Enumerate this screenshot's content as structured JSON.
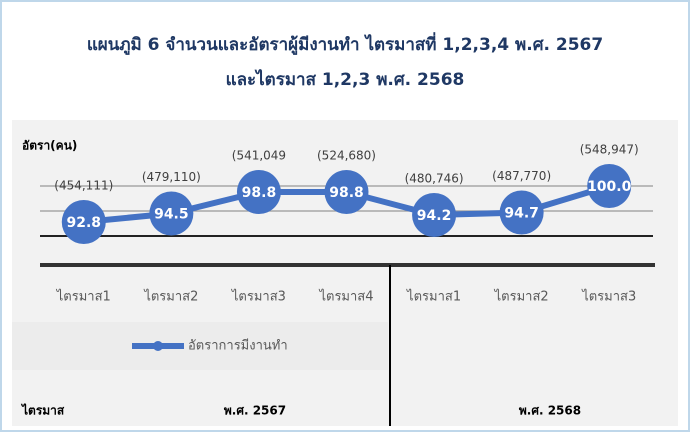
{
  "chart_data": {
    "type": "line",
    "title": [
      "แผนภูมิ 6 จำนวนและอัตราผู้มีงานทำ ไตรมาสที่ 1,2,3,4 พ.ศ. 2567",
      "และไตรมาส 1,2,3 พ.ศ. 2568"
    ],
    "y_label": "อัตรา(คน)",
    "categories": [
      "ไตรมาส1",
      "ไตรมาส2",
      "ไตรมาส3",
      "ไตรมาส4",
      "ไตรมาส1",
      "ไตรมาส2",
      "ไตรมาส3"
    ],
    "series": [
      {
        "name": "อัตราการมีงานทำ",
        "color": "#4472c4",
        "values": [
          92.8,
          94.5,
          98.8,
          98.8,
          94.2,
          94.7,
          100.0
        ],
        "value_labels": [
          "92.8",
          "94.5",
          "98.8",
          "98.8",
          "94.2",
          "94.7",
          "100.0"
        ]
      }
    ],
    "annotations": [
      "(454,111)",
      "(479,110)",
      "(541,049",
      "(524,680)",
      "(480,746)",
      "(487,770)",
      "(548,947)"
    ],
    "ylim": [
      90,
      101
    ],
    "yticks": [
      90,
      95,
      100
    ],
    "grid": true,
    "group_header": "ไตรมาส",
    "groups": [
      "พ.ศ. 2567",
      "พ.ศ. 2568"
    ]
  }
}
